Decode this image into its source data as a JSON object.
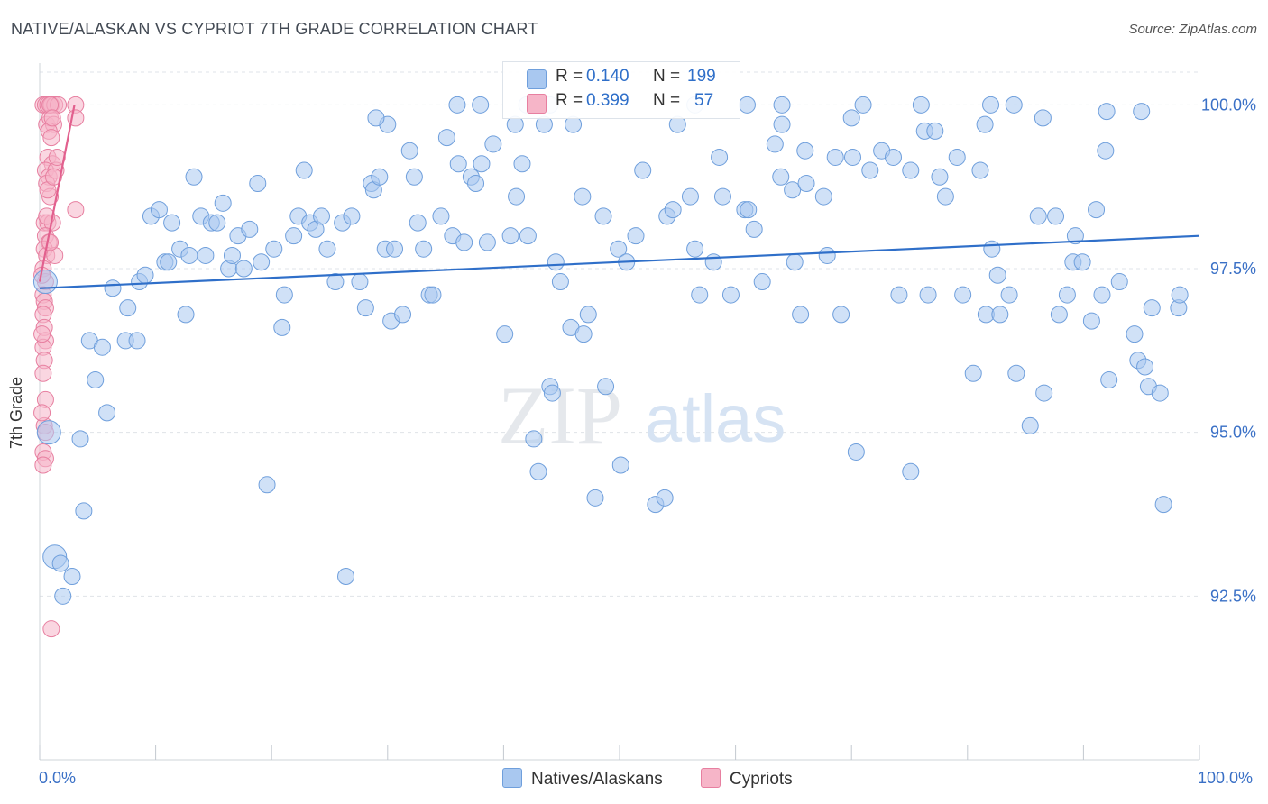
{
  "title": "NATIVE/ALASKAN VS CYPRIOT 7TH GRADE CORRELATION CHART",
  "source": "Source: ZipAtlas.com",
  "watermark": {
    "zip": "ZIP",
    "atlas": "atlas"
  },
  "legend": {
    "rows": [
      {
        "r_label": "R =",
        "r_value": "0.140",
        "n_label": "N =",
        "n_value": "199",
        "color": "#a9c8f0"
      },
      {
        "r_label": "R =",
        "r_value": "0.399",
        "n_label": "N =",
        "n_value": "57",
        "color": "#f6b5c8"
      }
    ]
  },
  "bottom_legend": [
    {
      "label": "Natives/Alaskans",
      "color": "#a9c8f0"
    },
    {
      "label": "Cypriots",
      "color": "#f6b5c8"
    }
  ],
  "chart_data": {
    "type": "scatter",
    "title": "NATIVE/ALASKAN VS CYPRIOT 7TH GRADE CORRELATION CHART",
    "xlabel": "",
    "ylabel": "7th Grade",
    "xlim": [
      0,
      100
    ],
    "ylim": [
      90.0,
      100.5
    ],
    "x_tick_labels": [
      "0.0%",
      "100.0%"
    ],
    "y_ticks": [
      92.5,
      95.0,
      97.5,
      100.0
    ],
    "y_tick_labels": [
      "92.5%",
      "95.0%",
      "97.5%",
      "100.0%"
    ],
    "grid": true,
    "series": [
      {
        "name": "Natives/Alaskans",
        "color": "#a9c8f0",
        "stroke": "#6f9fdc",
        "trend": {
          "x": [
            0,
            100
          ],
          "y": [
            97.2,
            98.0
          ],
          "color": "#2f6fc9"
        },
        "points": [
          [
            0.5,
            97.3
          ],
          [
            0.8,
            95.0
          ],
          [
            1.3,
            93.1
          ],
          [
            1.8,
            93.0
          ],
          [
            2.0,
            92.5
          ],
          [
            2.8,
            92.8
          ],
          [
            3.5,
            94.9
          ],
          [
            3.8,
            93.8
          ],
          [
            4.3,
            96.4
          ],
          [
            4.8,
            95.8
          ],
          [
            5.4,
            96.3
          ],
          [
            5.8,
            95.3
          ],
          [
            6.3,
            97.2
          ],
          [
            7.4,
            96.4
          ],
          [
            7.6,
            96.9
          ],
          [
            8.4,
            96.4
          ],
          [
            8.6,
            97.3
          ],
          [
            9.1,
            97.4
          ],
          [
            9.6,
            98.3
          ],
          [
            10.3,
            98.4
          ],
          [
            10.8,
            97.6
          ],
          [
            11.1,
            97.6
          ],
          [
            11.4,
            98.2
          ],
          [
            12.1,
            97.8
          ],
          [
            12.6,
            96.8
          ],
          [
            12.9,
            97.7
          ],
          [
            13.3,
            98.9
          ],
          [
            13.9,
            98.3
          ],
          [
            14.3,
            97.7
          ],
          [
            14.8,
            98.2
          ],
          [
            15.3,
            98.2
          ],
          [
            15.8,
            98.5
          ],
          [
            16.3,
            97.5
          ],
          [
            16.6,
            97.7
          ],
          [
            17.1,
            98.0
          ],
          [
            17.6,
            97.5
          ],
          [
            18.1,
            98.1
          ],
          [
            18.8,
            98.8
          ],
          [
            19.1,
            97.6
          ],
          [
            19.6,
            94.2
          ],
          [
            20.2,
            97.8
          ],
          [
            20.9,
            96.6
          ],
          [
            21.1,
            97.1
          ],
          [
            21.9,
            98.0
          ],
          [
            22.3,
            98.3
          ],
          [
            22.8,
            99.0
          ],
          [
            23.3,
            98.2
          ],
          [
            23.8,
            98.1
          ],
          [
            24.3,
            98.3
          ],
          [
            24.8,
            97.8
          ],
          [
            25.5,
            97.3
          ],
          [
            26.1,
            98.2
          ],
          [
            26.4,
            92.8
          ],
          [
            26.9,
            98.3
          ],
          [
            27.6,
            97.3
          ],
          [
            28.1,
            96.9
          ],
          [
            28.6,
            98.8
          ],
          [
            28.8,
            98.7
          ],
          [
            29.3,
            98.9
          ],
          [
            29.8,
            97.8
          ],
          [
            30.3,
            96.7
          ],
          [
            30.6,
            97.8
          ],
          [
            31.3,
            96.8
          ],
          [
            31.9,
            99.3
          ],
          [
            32.3,
            98.9
          ],
          [
            32.6,
            98.2
          ],
          [
            33.1,
            97.8
          ],
          [
            33.6,
            97.1
          ],
          [
            33.9,
            97.1
          ],
          [
            34.6,
            98.3
          ],
          [
            35.1,
            99.5
          ],
          [
            35.6,
            98.0
          ],
          [
            36.1,
            99.1
          ],
          [
            36.6,
            97.9
          ],
          [
            37.2,
            98.9
          ],
          [
            37.6,
            98.8
          ],
          [
            38.1,
            99.1
          ],
          [
            38.6,
            97.9
          ],
          [
            39.1,
            99.4
          ],
          [
            40.1,
            96.5
          ],
          [
            40.6,
            98.0
          ],
          [
            41.1,
            98.6
          ],
          [
            41.6,
            99.1
          ],
          [
            42.1,
            98.0
          ],
          [
            42.6,
            94.9
          ],
          [
            43.0,
            94.4
          ],
          [
            44.0,
            95.7
          ],
          [
            44.2,
            95.6
          ],
          [
            44.5,
            97.6
          ],
          [
            44.9,
            97.3
          ],
          [
            45.8,
            96.6
          ],
          [
            46.8,
            98.6
          ],
          [
            46.9,
            96.5
          ],
          [
            47.3,
            96.8
          ],
          [
            47.9,
            94.0
          ],
          [
            48.6,
            98.3
          ],
          [
            48.8,
            95.7
          ],
          [
            49.9,
            97.8
          ],
          [
            50.1,
            94.5
          ],
          [
            50.6,
            97.6
          ],
          [
            51.4,
            98.0
          ],
          [
            52.0,
            99.0
          ],
          [
            53.1,
            93.9
          ],
          [
            53.9,
            94.0
          ],
          [
            54.1,
            98.3
          ],
          [
            54.6,
            98.4
          ],
          [
            56.1,
            98.6
          ],
          [
            56.5,
            97.8
          ],
          [
            56.9,
            97.1
          ],
          [
            58.1,
            97.6
          ],
          [
            58.6,
            99.2
          ],
          [
            58.9,
            98.6
          ],
          [
            59.6,
            97.1
          ],
          [
            60.8,
            98.4
          ],
          [
            61.1,
            98.4
          ],
          [
            61.6,
            98.1
          ],
          [
            62.3,
            97.3
          ],
          [
            63.4,
            99.4
          ],
          [
            63.9,
            98.9
          ],
          [
            64.9,
            98.7
          ],
          [
            65.1,
            97.6
          ],
          [
            65.6,
            96.8
          ],
          [
            66.0,
            99.3
          ],
          [
            66.1,
            98.8
          ],
          [
            67.6,
            98.6
          ],
          [
            67.9,
            97.7
          ],
          [
            68.6,
            99.2
          ],
          [
            69.1,
            96.8
          ],
          [
            70.1,
            99.2
          ],
          [
            70.4,
            94.7
          ],
          [
            71.6,
            99.0
          ],
          [
            72.6,
            99.3
          ],
          [
            73.6,
            99.2
          ],
          [
            74.1,
            97.1
          ],
          [
            75.1,
            99.0
          ],
          [
            75.1,
            94.4
          ],
          [
            76.6,
            97.1
          ],
          [
            77.6,
            98.9
          ],
          [
            78.1,
            98.6
          ],
          [
            79.1,
            99.2
          ],
          [
            79.6,
            97.1
          ],
          [
            80.5,
            95.9
          ],
          [
            81.1,
            99.0
          ],
          [
            81.6,
            96.8
          ],
          [
            82.1,
            97.8
          ],
          [
            82.6,
            97.4
          ],
          [
            82.8,
            96.8
          ],
          [
            83.6,
            97.1
          ],
          [
            84.2,
            95.9
          ],
          [
            85.4,
            95.1
          ],
          [
            86.1,
            98.3
          ],
          [
            86.6,
            95.6
          ],
          [
            87.6,
            98.3
          ],
          [
            87.9,
            96.8
          ],
          [
            88.6,
            97.1
          ],
          [
            89.1,
            97.6
          ],
          [
            89.3,
            98.0
          ],
          [
            89.9,
            97.6
          ],
          [
            90.7,
            96.7
          ],
          [
            91.1,
            98.4
          ],
          [
            91.6,
            97.1
          ],
          [
            91.9,
            99.3
          ],
          [
            92.2,
            95.8
          ],
          [
            93.1,
            97.3
          ],
          [
            94.4,
            96.5
          ],
          [
            94.7,
            96.1
          ],
          [
            95.3,
            96.0
          ],
          [
            95.6,
            95.7
          ],
          [
            95.9,
            96.9
          ],
          [
            96.6,
            95.6
          ],
          [
            96.9,
            93.9
          ],
          [
            98.2,
            96.9
          ],
          [
            98.3,
            97.1
          ],
          [
            36.0,
            100.0
          ],
          [
            38.0,
            100.0
          ],
          [
            42.0,
            100.0
          ],
          [
            44.0,
            100.0
          ],
          [
            56.5,
            100.0
          ],
          [
            61.0,
            100.0
          ],
          [
            64.0,
            100.0
          ],
          [
            71.0,
            100.0
          ],
          [
            76.0,
            100.0
          ],
          [
            82.0,
            100.0
          ],
          [
            84.0,
            100.0
          ],
          [
            92.0,
            99.9
          ],
          [
            95.0,
            99.9
          ],
          [
            86.5,
            99.8
          ],
          [
            64.0,
            99.7
          ],
          [
            55.0,
            99.7
          ],
          [
            81.5,
            99.7
          ],
          [
            43.5,
            99.7
          ],
          [
            46.0,
            99.7
          ],
          [
            70.0,
            99.8
          ],
          [
            76.3,
            99.6
          ],
          [
            77.2,
            99.6
          ],
          [
            30.0,
            99.7
          ],
          [
            29.0,
            99.8
          ],
          [
            41.0,
            99.7
          ]
        ]
      },
      {
        "name": "Cypriots",
        "color": "#f6b5c8",
        "stroke": "#e77fa0",
        "trend": {
          "x": [
            0,
            3.0
          ],
          "y": [
            97.3,
            100.0
          ],
          "color": "#e2608e"
        },
        "points": [
          [
            0.3,
            100.0
          ],
          [
            0.5,
            100.0
          ],
          [
            0.7,
            100.0
          ],
          [
            1.0,
            100.0
          ],
          [
            1.3,
            100.0
          ],
          [
            1.6,
            100.0
          ],
          [
            3.1,
            100.0
          ],
          [
            0.6,
            99.7
          ],
          [
            0.9,
            99.8
          ],
          [
            1.2,
            99.7
          ],
          [
            0.8,
            99.6
          ],
          [
            1.0,
            99.5
          ],
          [
            3.1,
            99.8
          ],
          [
            0.7,
            99.2
          ],
          [
            1.1,
            99.1
          ],
          [
            0.5,
            99.0
          ],
          [
            0.8,
            98.9
          ],
          [
            1.4,
            99.0
          ],
          [
            0.6,
            98.8
          ],
          [
            0.9,
            98.6
          ],
          [
            3.1,
            98.4
          ],
          [
            0.4,
            98.2
          ],
          [
            0.7,
            98.2
          ],
          [
            1.1,
            98.2
          ],
          [
            0.5,
            98.0
          ],
          [
            0.8,
            97.9
          ],
          [
            0.4,
            97.8
          ],
          [
            0.6,
            97.7
          ],
          [
            1.3,
            97.7
          ],
          [
            0.3,
            97.5
          ],
          [
            0.5,
            97.3
          ],
          [
            0.3,
            97.1
          ],
          [
            0.4,
            97.0
          ],
          [
            0.5,
            96.9
          ],
          [
            0.3,
            96.8
          ],
          [
            0.4,
            96.6
          ],
          [
            0.5,
            96.4
          ],
          [
            0.3,
            96.3
          ],
          [
            0.4,
            96.1
          ],
          [
            0.3,
            95.9
          ],
          [
            0.5,
            95.5
          ],
          [
            0.4,
            95.1
          ],
          [
            0.5,
            95.0
          ],
          [
            0.3,
            94.7
          ],
          [
            0.5,
            94.6
          ],
          [
            0.3,
            94.5
          ],
          [
            1.0,
            92.0
          ],
          [
            0.9,
            100.0
          ],
          [
            1.1,
            99.8
          ],
          [
            1.5,
            99.2
          ],
          [
            0.6,
            98.3
          ],
          [
            0.9,
            97.9
          ],
          [
            0.2,
            97.4
          ],
          [
            0.2,
            96.5
          ],
          [
            0.2,
            95.3
          ],
          [
            0.7,
            98.7
          ],
          [
            1.2,
            98.9
          ]
        ]
      }
    ]
  }
}
